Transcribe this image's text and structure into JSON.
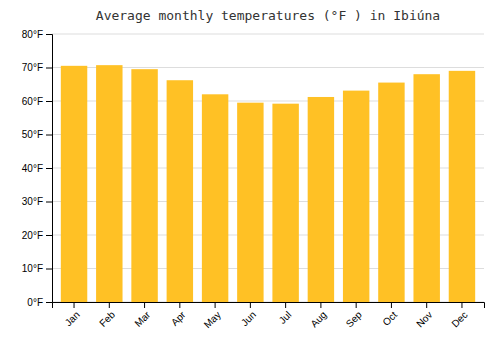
{
  "chart_data": {
    "type": "bar",
    "title": "Average monthly temperatures (°F ) in Ibiúna",
    "categories": [
      "Jan",
      "Feb",
      "Mar",
      "Apr",
      "May",
      "Jun",
      "Jul",
      "Aug",
      "Sep",
      "Oct",
      "Nov",
      "Dec"
    ],
    "values": [
      70.5,
      70.7,
      69.5,
      66.2,
      62.0,
      59.5,
      59.2,
      61.2,
      63.1,
      65.5,
      68.0,
      69.0
    ],
    "color": "#FFC125",
    "ylim": [
      0,
      80
    ],
    "yticks": [
      {
        "value": 0,
        "label": "0°F"
      },
      {
        "value": 10,
        "label": "10°F"
      },
      {
        "value": 20,
        "label": "20°F"
      },
      {
        "value": 30,
        "label": "30°F"
      },
      {
        "value": 40,
        "label": "40°F"
      },
      {
        "value": 50,
        "label": "50°F"
      },
      {
        "value": 60,
        "label": "60°F"
      },
      {
        "value": 70,
        "label": "70°F"
      },
      {
        "value": 80,
        "label": "80°F"
      }
    ],
    "grid": true
  }
}
